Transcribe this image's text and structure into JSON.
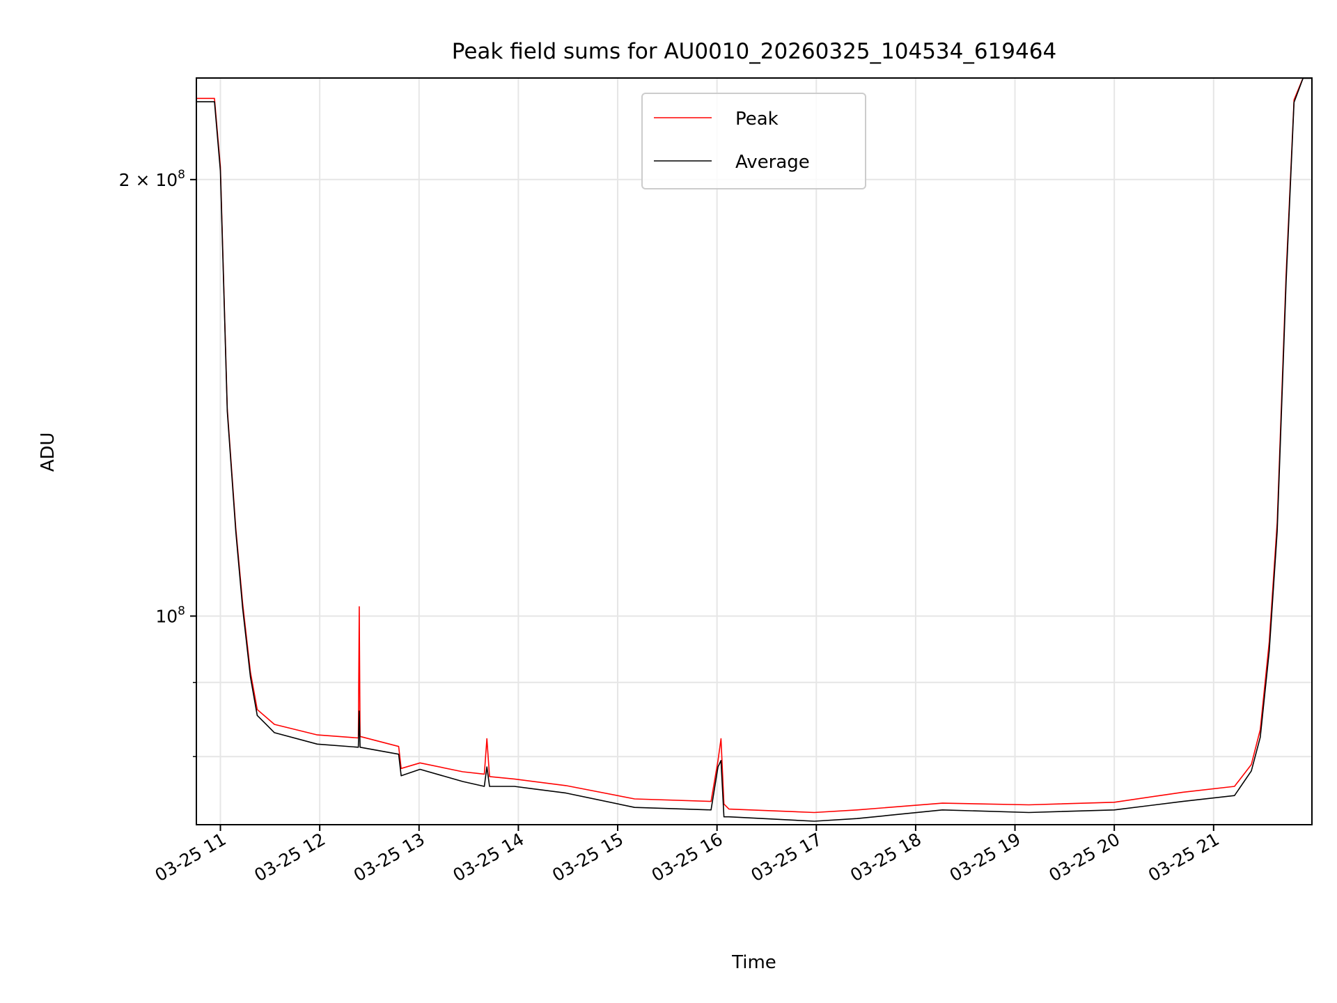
{
  "chart_data": {
    "type": "line",
    "title": "Peak field sums for AU0010_20260325_104534_619464",
    "xlabel": "Time",
    "ylabel": "ADU",
    "yscale": "log",
    "x_units": "hours on 2026-03-25",
    "y_units": "millions of ADU",
    "xlim": [
      10.758,
      21.99
    ],
    "ylim": [
      71.8,
      235
    ],
    "grid": true,
    "legend_position": "top-center",
    "x_ticks": [
      {
        "value": 11,
        "label": "03-25 11"
      },
      {
        "value": 12,
        "label": "03-25 12"
      },
      {
        "value": 13,
        "label": "03-25 13"
      },
      {
        "value": 14,
        "label": "03-25 14"
      },
      {
        "value": 15,
        "label": "03-25 15"
      },
      {
        "value": 16,
        "label": "03-25 16"
      },
      {
        "value": 17,
        "label": "03-25 17"
      },
      {
        "value": 18,
        "label": "03-25 18"
      },
      {
        "value": 19,
        "label": "03-25 19"
      },
      {
        "value": 20,
        "label": "03-25 20"
      },
      {
        "value": 21,
        "label": "03-25 21"
      }
    ],
    "y_major_ticks": [
      {
        "value": 100,
        "base": "10",
        "exp": "8",
        "mantissa": ""
      },
      {
        "value": 200,
        "base": "10",
        "exp": "8",
        "mantissa": "2 × "
      }
    ],
    "y_minor_ticks": [
      80,
      90
    ],
    "x": [
      10.758,
      10.94,
      11.0,
      11.069,
      11.155,
      11.224,
      11.302,
      11.371,
      11.544,
      11.975,
      12.389,
      12.398,
      12.406,
      12.795,
      12.82,
      13.01,
      13.44,
      13.657,
      13.683,
      13.71,
      13.96,
      14.48,
      15.17,
      15.94,
      16.01,
      16.04,
      16.07,
      16.12,
      16.98,
      17.41,
      18.27,
      19.14,
      20.0,
      20.69,
      21.21,
      21.38,
      21.47,
      21.56,
      21.64,
      21.73,
      21.81,
      21.9,
      21.99
    ],
    "series": [
      {
        "name": "Peak",
        "color": "#ff0000",
        "values": [
          227.5,
          227.5,
          204,
          139,
          115,
          102,
          91.5,
          86.2,
          84.2,
          82.8,
          82.4,
          101.5,
          82.6,
          81.3,
          78.5,
          79.2,
          78.1,
          77.8,
          82.3,
          77.5,
          77.2,
          76.4,
          74.8,
          74.5,
          79.5,
          82.3,
          74.2,
          73.6,
          73.2,
          73.5,
          74.3,
          74.1,
          74.4,
          75.6,
          76.3,
          79.0,
          83.5,
          96.0,
          116.0,
          172.0,
          227.0,
          235.0,
          235.0
        ]
      },
      {
        "name": "Average",
        "color": "#000000",
        "values": [
          226.3,
          226.3,
          202.7,
          138.4,
          114.4,
          101.2,
          90.8,
          85.4,
          83.1,
          81.6,
          81.2,
          86.0,
          81.2,
          80.3,
          77.6,
          78.4,
          76.9,
          76.3,
          78.7,
          76.3,
          76.3,
          75.5,
          73.8,
          73.5,
          78.7,
          79.5,
          72.7,
          72.7,
          72.2,
          72.5,
          73.5,
          73.2,
          73.5,
          74.5,
          75.2,
          78.2,
          82.5,
          94.6,
          114.4,
          169.9,
          226.1,
          234.9,
          234.9
        ]
      }
    ]
  }
}
